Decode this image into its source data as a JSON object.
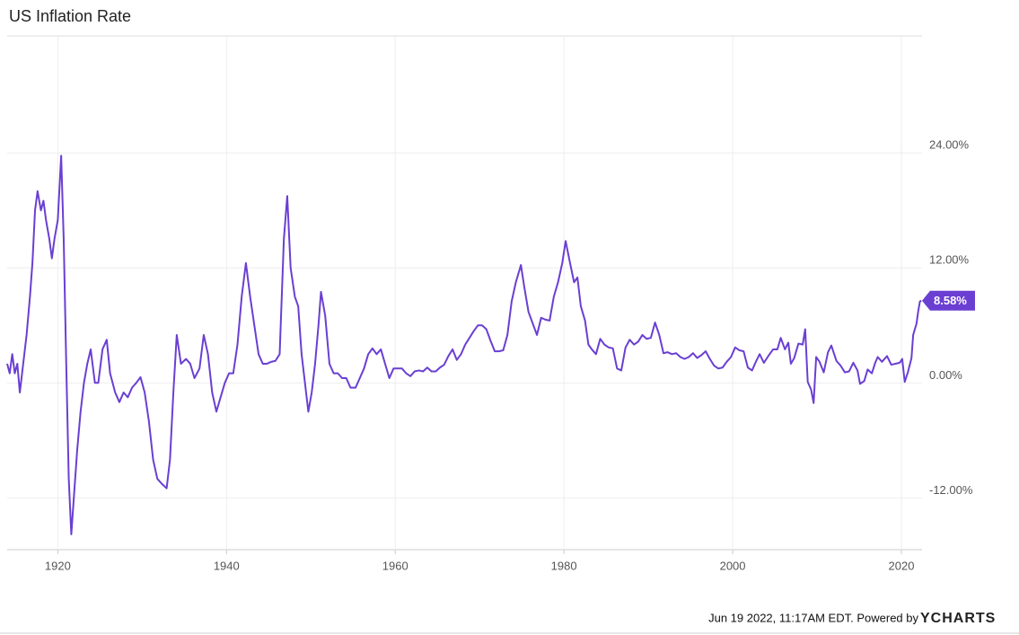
{
  "chart_data": {
    "type": "line",
    "title": "US Inflation Rate",
    "footer": "Jun 19 2022, 11:17AM EDT. Powered by",
    "brand": "YCHARTS",
    "xlim": [
      1914,
      2022.45
    ],
    "xticks": [
      1920,
      1940,
      1960,
      1980,
      2000,
      2020
    ],
    "ylim": [
      -17.4,
      36.2
    ],
    "yticks": [
      {
        "value": -12,
        "label": "-12.00%"
      },
      {
        "value": 0,
        "label": "0.00%"
      },
      {
        "value": 12,
        "label": "12.00%"
      },
      {
        "value": 24,
        "label": "24.00%"
      }
    ],
    "grid": true,
    "series": [
      {
        "name": "US Inflation Rate",
        "color": "#6a3fd2",
        "x": [
          1914.0,
          1914.3,
          1914.6,
          1914.9,
          1915.2,
          1915.5,
          1915.9,
          1916.3,
          1916.7,
          1917.0,
          1917.3,
          1917.6,
          1918.0,
          1918.3,
          1918.6,
          1919.0,
          1919.3,
          1919.6,
          1920.0,
          1920.4,
          1920.7,
          1921.0,
          1921.3,
          1921.6,
          1921.9,
          1922.3,
          1922.7,
          1923.1,
          1923.5,
          1923.9,
          1924.4,
          1924.8,
          1925.3,
          1925.8,
          1926.2,
          1926.8,
          1927.3,
          1927.8,
          1928.3,
          1928.8,
          1929.3,
          1929.8,
          1930.3,
          1930.8,
          1931.3,
          1931.8,
          1932.3,
          1932.9,
          1933.3,
          1933.7,
          1934.1,
          1934.6,
          1935.2,
          1935.7,
          1936.2,
          1936.8,
          1937.3,
          1937.8,
          1938.3,
          1938.8,
          1939.3,
          1939.8,
          1940.3,
          1940.8,
          1941.3,
          1941.8,
          1942.3,
          1942.8,
          1943.3,
          1943.8,
          1944.3,
          1944.8,
          1945.3,
          1945.8,
          1946.3,
          1946.8,
          1947.2,
          1947.6,
          1948.1,
          1948.5,
          1948.9,
          1949.3,
          1949.7,
          1950.1,
          1950.5,
          1950.9,
          1951.2,
          1951.7,
          1952.2,
          1952.7,
          1953.2,
          1953.7,
          1954.2,
          1954.7,
          1955.3,
          1955.8,
          1956.3,
          1956.8,
          1957.3,
          1957.8,
          1958.3,
          1958.8,
          1959.3,
          1959.8,
          1960.3,
          1960.8,
          1961.3,
          1961.8,
          1962.3,
          1962.8,
          1963.3,
          1963.8,
          1964.3,
          1964.8,
          1965.3,
          1965.8,
          1966.3,
          1966.8,
          1967.3,
          1967.8,
          1968.3,
          1968.8,
          1969.3,
          1969.8,
          1970.3,
          1970.8,
          1971.3,
          1971.8,
          1972.3,
          1972.8,
          1973.3,
          1973.8,
          1974.3,
          1974.9,
          1975.3,
          1975.8,
          1976.3,
          1976.8,
          1977.3,
          1977.8,
          1978.3,
          1978.8,
          1979.3,
          1979.8,
          1980.2,
          1980.7,
          1981.2,
          1981.6,
          1982.0,
          1982.5,
          1982.9,
          1983.3,
          1983.8,
          1984.3,
          1984.8,
          1985.3,
          1985.8,
          1986.3,
          1986.8,
          1987.3,
          1987.8,
          1988.3,
          1988.8,
          1989.3,
          1989.8,
          1990.3,
          1990.8,
          1991.3,
          1991.8,
          1992.3,
          1992.8,
          1993.3,
          1993.8,
          1994.3,
          1994.8,
          1995.3,
          1995.8,
          1996.3,
          1996.8,
          1997.3,
          1997.8,
          1998.3,
          1998.8,
          1999.3,
          1999.8,
          2000.3,
          2000.8,
          2001.3,
          2001.8,
          2002.3,
          2002.8,
          2003.2,
          2003.7,
          2004.3,
          2004.8,
          2005.3,
          2005.7,
          2006.2,
          2006.6,
          2006.9,
          2007.3,
          2007.8,
          2008.3,
          2008.6,
          2008.9,
          2009.3,
          2009.6,
          2009.9,
          2010.3,
          2010.8,
          2011.3,
          2011.7,
          2012.3,
          2012.8,
          2013.3,
          2013.8,
          2014.3,
          2014.8,
          2015.1,
          2015.6,
          2016.0,
          2016.5,
          2016.9,
          2017.2,
          2017.7,
          2018.3,
          2018.8,
          2019.3,
          2019.8,
          2020.1,
          2020.4,
          2020.8,
          2021.2,
          2021.4,
          2021.8,
          2022.0,
          2022.2,
          2022.37
        ],
        "values": [
          2.0,
          1.0,
          3.0,
          1.0,
          2.0,
          -1.0,
          2.0,
          5.0,
          9.0,
          12.6,
          18.0,
          20.0,
          18.0,
          19.0,
          17.0,
          15.0,
          13.0,
          15.0,
          17.0,
          23.7,
          15.0,
          2.0,
          -10.0,
          -15.8,
          -12.0,
          -7.0,
          -3.0,
          0.0,
          2.0,
          3.5,
          0.0,
          0.0,
          3.5,
          4.5,
          1.0,
          -1.0,
          -2.0,
          -1.0,
          -1.5,
          -0.5,
          0.0,
          0.6,
          -1.0,
          -4.0,
          -8.0,
          -10.0,
          -10.5,
          -11.0,
          -8.0,
          -1.0,
          5.0,
          2.0,
          2.5,
          2.0,
          0.5,
          1.5,
          5.0,
          3.0,
          -1.0,
          -3.0,
          -1.5,
          0.0,
          1.0,
          1.0,
          4.0,
          9.0,
          12.5,
          9.0,
          6.0,
          3.0,
          2.0,
          2.0,
          2.2,
          2.3,
          3.0,
          15.0,
          19.5,
          12.0,
          9.0,
          8.0,
          3.0,
          0.0,
          -3.0,
          -1.0,
          2.0,
          6.0,
          9.5,
          7.0,
          2.0,
          1.0,
          1.0,
          0.5,
          0.5,
          -0.5,
          -0.5,
          0.5,
          1.5,
          3.0,
          3.6,
          3.0,
          3.5,
          2.0,
          0.5,
          1.5,
          1.5,
          1.5,
          1.0,
          0.7,
          1.2,
          1.3,
          1.2,
          1.6,
          1.2,
          1.2,
          1.6,
          1.9,
          2.8,
          3.5,
          2.4,
          3.0,
          4.0,
          4.7,
          5.4,
          6.0,
          6.0,
          5.6,
          4.4,
          3.3,
          3.3,
          3.4,
          5.0,
          8.5,
          10.5,
          12.3,
          10.0,
          7.4,
          6.2,
          5.0,
          6.8,
          6.6,
          6.5,
          9.0,
          10.5,
          12.5,
          14.8,
          12.6,
          10.5,
          11.0,
          8.0,
          6.5,
          4.0,
          3.5,
          3.0,
          4.6,
          4.0,
          3.7,
          3.6,
          1.5,
          1.3,
          3.7,
          4.5,
          4.0,
          4.3,
          5.0,
          4.6,
          4.7,
          6.3,
          5.0,
          3.1,
          3.2,
          3.0,
          3.1,
          2.7,
          2.5,
          2.7,
          3.1,
          2.6,
          2.9,
          3.3,
          2.5,
          1.8,
          1.5,
          1.6,
          2.2,
          2.7,
          3.7,
          3.4,
          3.3,
          1.6,
          1.3,
          2.3,
          3.0,
          2.1,
          2.9,
          3.5,
          3.5,
          4.7,
          3.5,
          4.2,
          2.0,
          2.6,
          4.1,
          4.0,
          5.6,
          0.1,
          -0.7,
          -2.1,
          2.7,
          2.2,
          1.1,
          3.2,
          3.9,
          2.3,
          1.8,
          1.1,
          1.2,
          2.1,
          1.3,
          -0.1,
          0.2,
          1.4,
          1.0,
          2.1,
          2.7,
          2.2,
          2.8,
          1.9,
          2.0,
          2.1,
          2.5,
          0.1,
          1.2,
          2.6,
          5.0,
          6.2,
          7.5,
          8.5,
          8.58
        ]
      }
    ],
    "last_value": {
      "value": 8.58,
      "label": "8.58%"
    }
  }
}
